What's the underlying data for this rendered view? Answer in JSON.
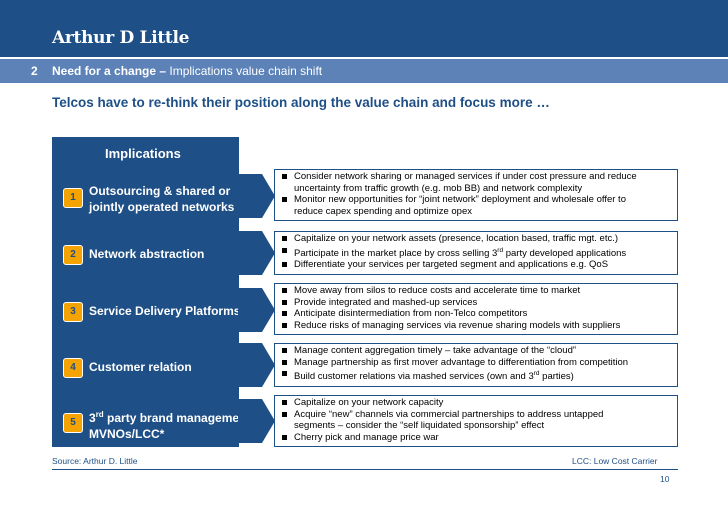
{
  "header": {
    "logo": "Arthur D Little"
  },
  "subbar": {
    "number": "2",
    "title_bold": "Need for a change –",
    "title_rest": " Implications value chain shift"
  },
  "headline": "Telcos have to re-think their position along the value chain and focus more …",
  "implications_title": "Implications",
  "rows": [
    {
      "badge": "1",
      "label_line1": "Outsourcing & shared or",
      "label_line2": "jointly operated networks",
      "bullets": [
        [
          "Consider network sharing or managed services if under cost pressure and reduce"
        ],
        [
          "uncertainty from traffic growth (e.g. mob BB) and network complexity"
        ],
        [
          "Monitor new opportunities for “joint network” deployment and wholesale offer to"
        ],
        [
          "reduce capex spending and optimize opex"
        ]
      ]
    },
    {
      "badge": "2",
      "label_line1": "Network abstraction",
      "bullets": [
        [
          "Capitalize on your network assets (presence, location based, traffic mgt. etc.)"
        ],
        [
          "Participate in the market place by cross selling 3",
          "rd",
          " party developed applications"
        ],
        [
          "Differentiate your services per targeted segment and applications e.g. QoS"
        ]
      ]
    },
    {
      "badge": "3",
      "label_line1": "Service Delivery Platforms",
      "bullets": [
        [
          "Move away from silos to reduce costs and accelerate time to market"
        ],
        [
          "Provide integrated and mashed-up services"
        ],
        [
          "Anticipate disintermediation from non-Telco competitors"
        ],
        [
          "Reduce risks of managing services via revenue sharing models with suppliers"
        ]
      ]
    },
    {
      "badge": "4",
      "label_line1": "Customer relation",
      "bullets": [
        [
          "Manage content aggregation timely – take advantage of the “cloud”"
        ],
        [
          "Manage partnership as first mover advantage to differentiation from competition"
        ],
        [
          "Build customer relations via mashed services (own and 3",
          "rd",
          " parties)"
        ]
      ]
    },
    {
      "badge": "5",
      "label_line1_a": "3",
      "label_line1_sup": "rd",
      "label_line1_b": " party brand management",
      "label_line2": "MVNOs/LCC*",
      "bullets": [
        [
          "Capitalize on your network capacity"
        ],
        [
          "Acquire “new” channels via commercial partnerships to address untapped"
        ],
        [
          "segments – consider the “self liquidated sponsorship” effect"
        ],
        [
          "Cherry pick and manage price war"
        ]
      ]
    }
  ],
  "footer": {
    "source": "Source: Arthur D. Little",
    "note": "LCC: Low Cost Carrier",
    "page": "10"
  },
  "colors": {
    "navy": "#1e4f86",
    "subbar": "#5c82b8",
    "badge": "#f4a300"
  }
}
